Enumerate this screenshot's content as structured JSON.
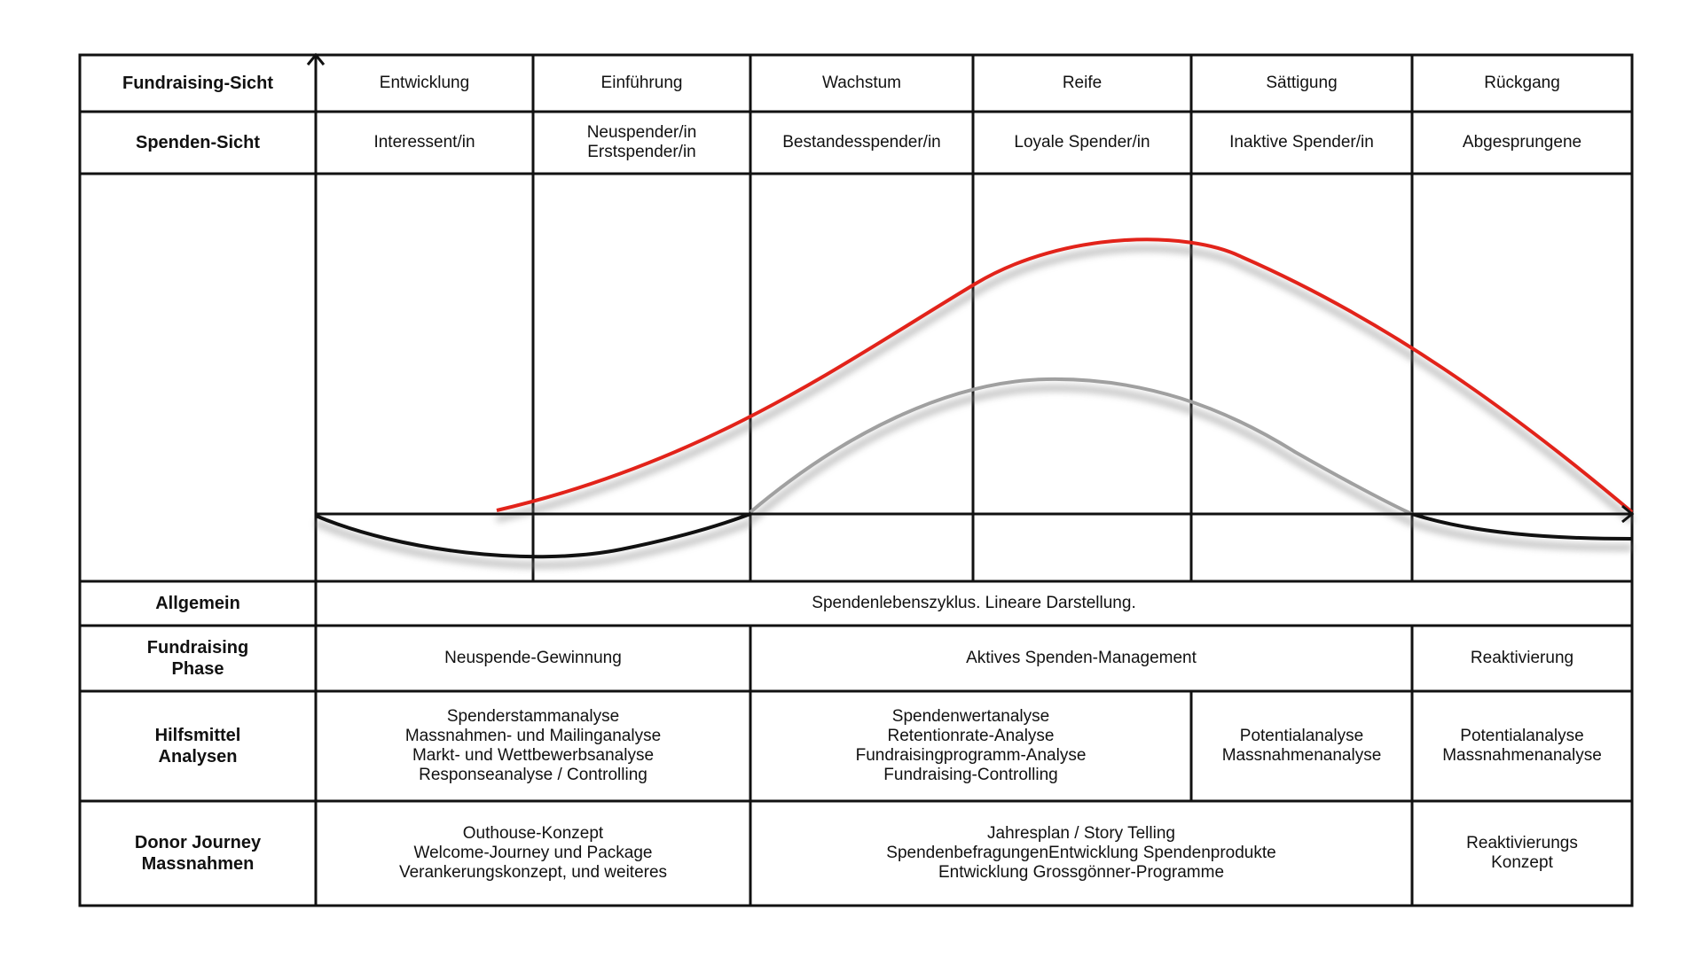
{
  "rows": {
    "fundraising_sicht": {
      "label": "Fundraising-Sicht",
      "phases": [
        "Entwicklung",
        "Einführung",
        "Wachstum",
        "Reife",
        "Sättigung",
        "Rückgang"
      ]
    },
    "spenden_sicht": {
      "label": "Spenden-Sicht",
      "phases": [
        "Interessent/in",
        "Neuspender/in\nErstspender/in",
        "Bestandesspender/in",
        "Loyale Spender/in",
        "Inaktive Spender/in",
        "Abgesprungene"
      ]
    },
    "allgemein": {
      "label": "Allgemein",
      "text": "Spendenlebenszyklus. Lineare Darstellung."
    },
    "fundraising_phase": {
      "label": "Fundraising\nPhase",
      "cells": [
        "Neuspende-Gewinnung",
        "Aktives Spenden-Management",
        "Reaktivierung"
      ]
    },
    "hilfsmittel": {
      "label": "Hilfsmittel\nAnalysen",
      "cells": [
        "Spenderstammanalyse\nMassnahmen- und Mailinganalyse\nMarkt- und Wettbewerbsanalyse\nResponseanalyse / Controlling",
        "Spendenwertanalyse\nRetentionrate-Analyse\nFundraisingprogramm-Analyse\nFundraising-Controlling",
        "Potentialanalyse\nMassnahmenanalyse",
        "Potentialanalyse\nMassnahmenanalyse"
      ]
    },
    "donor_journey": {
      "label": "Donor Journey\nMassnahmen",
      "cells": [
        "Outhouse-Konzept\nWelcome-Journey und Package\nVerankerungskonzept, und weiteres",
        "Jahresplan / Story Telling\nSpendenbefragungenEntwicklung Spendenprodukte\nEntwicklung Grossgönner-Programme",
        "Reaktivierungs\nKonzept"
      ]
    }
  },
  "colors": {
    "grid": "#111111",
    "red_curve": "#e2231a",
    "grey_curve": "#a0a0a0",
    "black_curve": "#111111",
    "shadow": "#8a8a8a"
  },
  "icons": {
    "y_axis": "arrow-up-icon",
    "x_axis": "arrow-right-icon"
  }
}
